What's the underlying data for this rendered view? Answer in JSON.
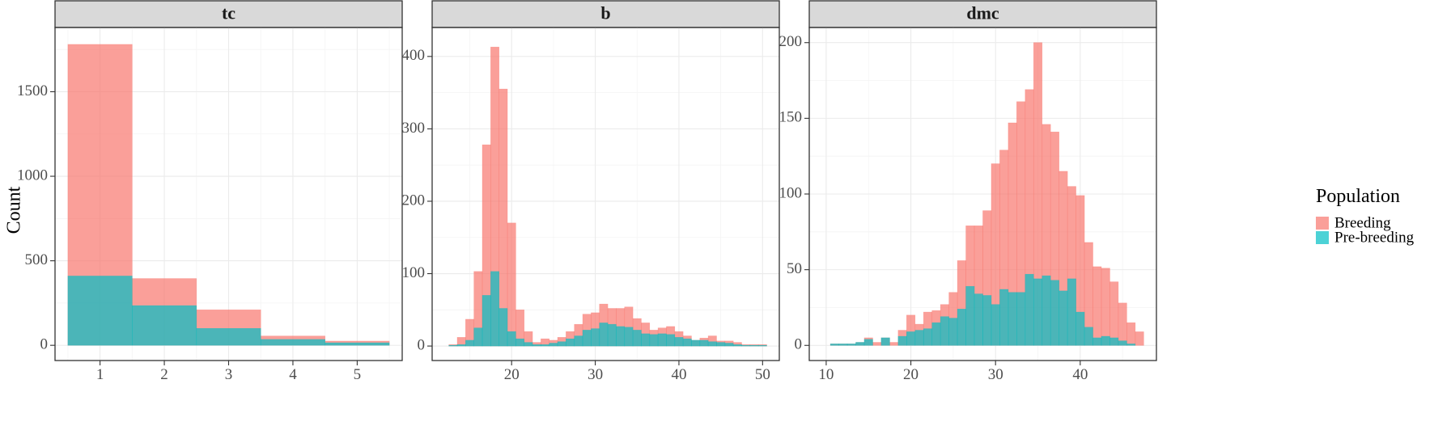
{
  "chart_data": {
    "type": "bar",
    "title": "",
    "ylabel": "Count",
    "grid": true,
    "legend": {
      "title": "Population",
      "position": "right",
      "entries": [
        {
          "name": "Breeding",
          "color": "#f8766d"
        },
        {
          "name": "Pre-breeding",
          "color": "#00bfc4"
        }
      ]
    },
    "colors": {
      "breeding_fill": "#f8766d",
      "prebreeding_fill": "#00bfc4",
      "strip_background": "#d9d9d9",
      "grid": "#ebebeb"
    },
    "panels": [
      {
        "title": "tc",
        "xlim": [
          0.3,
          5.7
        ],
        "ylim": [
          -90,
          1880
        ],
        "x_ticks": [
          1,
          2,
          3,
          4,
          5
        ],
        "x_tick_labels": [
          "1",
          "2",
          "3",
          "4",
          "5"
        ],
        "y_ticks": [
          0,
          500,
          1000,
          1500
        ],
        "y_tick_labels": [
          "0",
          "500",
          "1000",
          "1500"
        ],
        "bin_centers": [
          1,
          2,
          3,
          4,
          5
        ],
        "bin_width": 1,
        "series": [
          {
            "name": "Breeding",
            "values": [
              1780,
              395,
              210,
              55,
              25
            ]
          },
          {
            "name": "Pre-breeding",
            "values": [
              410,
              235,
              100,
              35,
              15
            ]
          }
        ]
      },
      {
        "title": "b",
        "xlim": [
          10.5,
          52
        ],
        "ylim": [
          -20,
          440
        ],
        "x_ticks": [
          20,
          30,
          40,
          50
        ],
        "x_tick_labels": [
          "20",
          "30",
          "40",
          "50"
        ],
        "y_ticks": [
          0,
          100,
          200,
          300,
          400
        ],
        "y_tick_labels": [
          "0",
          "100",
          "200",
          "300",
          "400"
        ],
        "bin_centers": [
          13,
          14,
          15,
          16,
          17,
          18,
          19,
          20,
          21,
          22,
          23,
          24,
          25,
          26,
          27,
          28,
          29,
          30,
          31,
          32,
          33,
          34,
          35,
          36,
          37,
          38,
          39,
          40,
          41,
          42,
          43,
          44,
          45,
          46,
          47,
          48,
          49,
          50
        ],
        "bin_width": 1,
        "series": [
          {
            "name": "Breeding",
            "values": [
              2,
              12,
              37,
              103,
              278,
              413,
              355,
              170,
              50,
              20,
              5,
              10,
              8,
              12,
              20,
              30,
              44,
              46,
              58,
              52,
              52,
              54,
              38,
              32,
              22,
              25,
              27,
              20,
              14,
              8,
              11,
              14,
              7,
              7,
              5,
              2,
              2,
              2
            ]
          },
          {
            "name": "Pre-breeding",
            "values": [
              1,
              2,
              8,
              25,
              70,
              103,
              52,
              20,
              10,
              5,
              2,
              2,
              4,
              6,
              10,
              14,
              22,
              24,
              32,
              30,
              27,
              26,
              22,
              17,
              16,
              17,
              16,
              12,
              10,
              8,
              8,
              6,
              5,
              4,
              2,
              1,
              1,
              1
            ]
          }
        ]
      },
      {
        "title": "dmc",
        "xlim": [
          8,
          49
        ],
        "ylim": [
          -10,
          210
        ],
        "x_ticks": [
          10,
          20,
          30,
          40
        ],
        "x_tick_labels": [
          "10",
          "20",
          "30",
          "40"
        ],
        "y_ticks": [
          0,
          50,
          100,
          150,
          200
        ],
        "y_tick_labels": [
          "0",
          "50",
          "100",
          "150",
          "200"
        ],
        "bin_centers": [
          11,
          12,
          13,
          14,
          15,
          16,
          17,
          18,
          19,
          20,
          21,
          22,
          23,
          24,
          25,
          26,
          27,
          28,
          29,
          30,
          31,
          32,
          33,
          34,
          35,
          36,
          37,
          38,
          39,
          40,
          41,
          42,
          43,
          44,
          45,
          46,
          47
        ],
        "bin_width": 1,
        "series": [
          {
            "name": "Breeding",
            "values": [
              1,
              1,
              1,
              2,
              5,
              2,
              5,
              2,
              10,
              20,
              14,
              22,
              23,
              27,
              35,
              56,
              79,
              79,
              89,
              120,
              129,
              147,
              161,
              169,
              200,
              146,
              141,
              115,
              105,
              99,
              68,
              52,
              51,
              42,
              28,
              15,
              9
            ]
          },
          {
            "name": "Pre-breeding",
            "values": [
              1,
              1,
              1,
              2,
              4,
              0,
              5,
              0,
              6,
              9,
              10,
              11,
              15,
              19,
              18,
              24,
              39,
              34,
              33,
              27,
              37,
              35,
              35,
              47,
              44,
              46,
              43,
              36,
              44,
              22,
              12,
              5,
              6,
              5,
              3,
              1,
              0
            ]
          }
        ]
      }
    ]
  }
}
